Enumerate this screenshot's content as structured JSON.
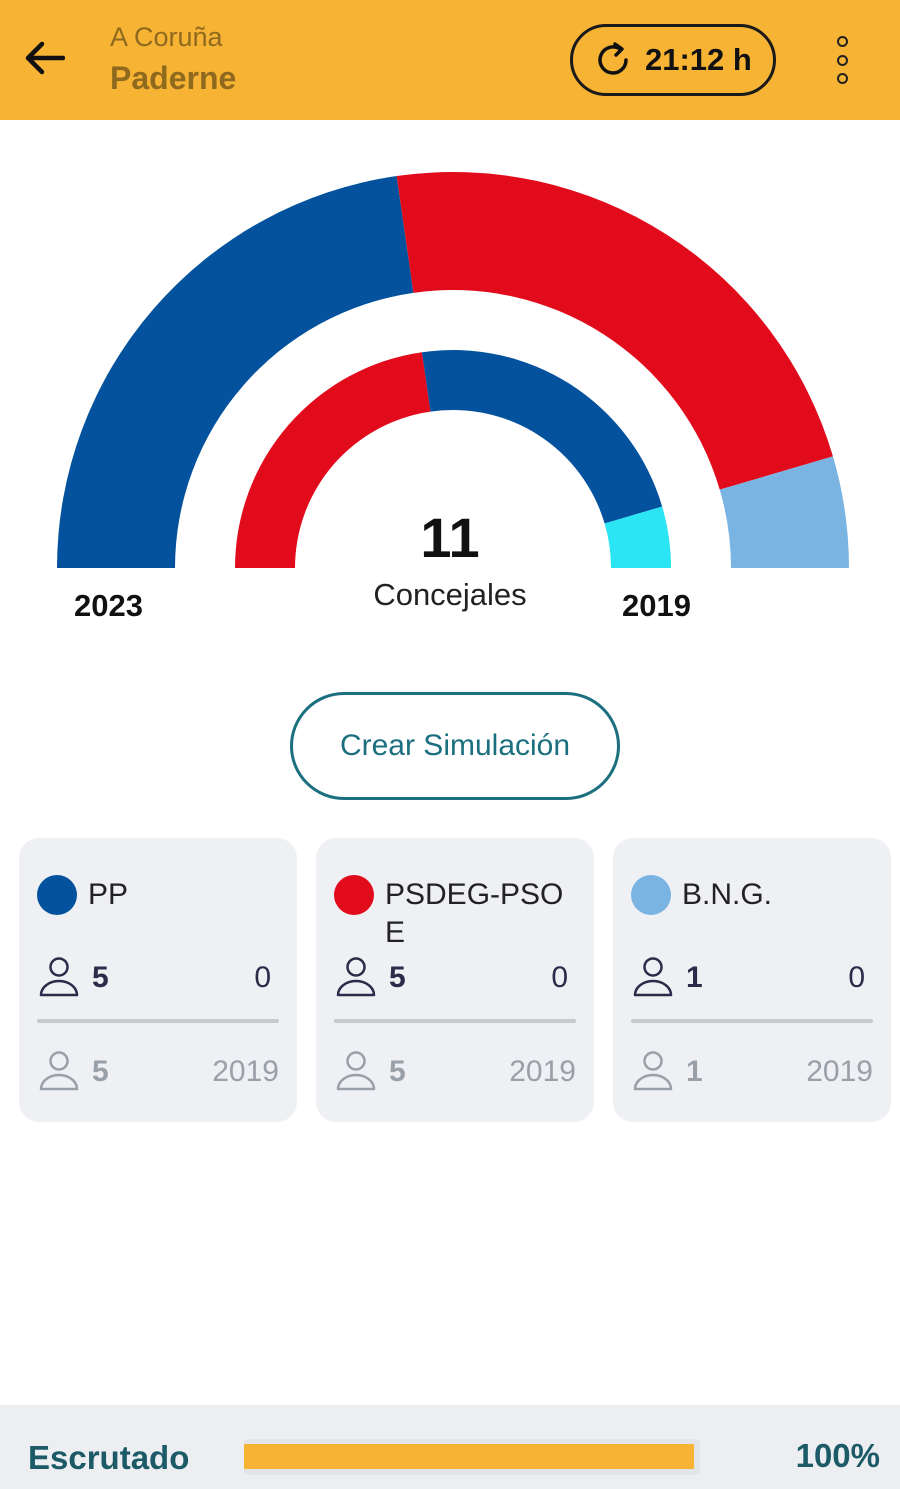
{
  "header": {
    "province": "A Coruña",
    "town": "Paderne",
    "refresh_time": "21:12 h",
    "colors": {
      "bar": "#f7b334",
      "text": "#8f6a1e"
    },
    "icons": {
      "back": "arrow-left-icon",
      "refresh": "refresh-icon",
      "menu": "more-vertical-icon"
    }
  },
  "chart_data": {
    "type": "donut",
    "center_value": "11",
    "center_label": "Concejales",
    "outer_year_label": "2023",
    "inner_year_label": "2019",
    "series": [
      {
        "name": "2023",
        "ring": "outer",
        "slices": [
          {
            "party": "PP",
            "seats": 5,
            "color": "#04529e"
          },
          {
            "party": "PSDEG-PSOE",
            "seats": 5,
            "color": "#e10b1c"
          },
          {
            "party": "B.N.G.",
            "seats": 1,
            "color": "#7ab4e3"
          }
        ]
      },
      {
        "name": "2019",
        "ring": "inner",
        "slices": [
          {
            "party": "PSDEG-PSOE",
            "seats": 5,
            "color": "#e10b1c"
          },
          {
            "party": "PP",
            "seats": 5,
            "color": "#04529e"
          },
          {
            "party": "B.N.G.",
            "seats": 1,
            "color": "#2be4f4"
          }
        ]
      }
    ]
  },
  "simulation_button": "Crear Simulación",
  "parties": [
    {
      "name": "PP",
      "color": "#04529e",
      "seats_now": "5",
      "change": "0",
      "seats_prev": "5",
      "prev_year": "2019"
    },
    {
      "name": "PSDEG-PSOE",
      "color": "#e10b1c",
      "seats_now": "5",
      "change": "0",
      "seats_prev": "5",
      "prev_year": "2019"
    },
    {
      "name": "B.N.G.",
      "color": "#7ab4e3",
      "seats_now": "1",
      "change": "0",
      "seats_prev": "1",
      "prev_year": "2019"
    }
  ],
  "footer": {
    "label": "Escrutado",
    "percent_text": "100%",
    "progress_fraction": 1.0,
    "colors": {
      "fill": "#f7b334"
    }
  }
}
